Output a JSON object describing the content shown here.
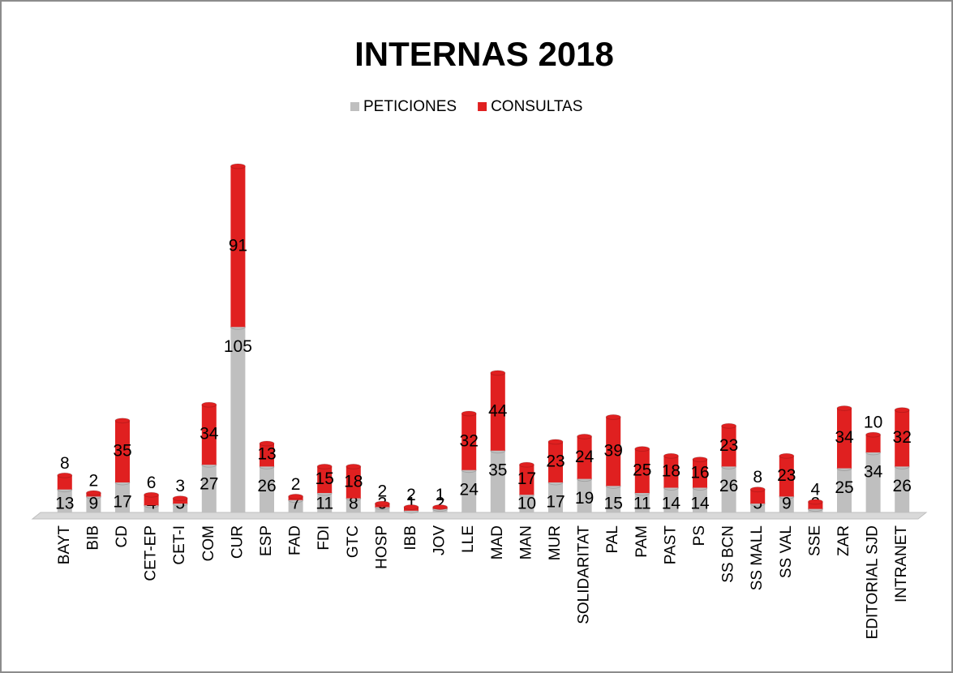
{
  "chart_data": {
    "type": "stacked_bar",
    "title": "INTERNAS 2018",
    "categories": [
      "BAYT",
      "BIB",
      "CD",
      "CET-EP",
      "CET-I",
      "COM",
      "CUR",
      "ESP",
      "FAD",
      "FDI",
      "GTC",
      "HOSP",
      "IBB",
      "JOV",
      "LLE",
      "MAD",
      "MAN",
      "MUR",
      "SOLIDARITAT",
      "PAL",
      "PAM",
      "PAST",
      "PS",
      "SS BCN",
      "SS MALL",
      "SS VAL",
      "SSE",
      "ZAR",
      "EDITORIAL SJD",
      "INTRANET"
    ],
    "series": [
      {
        "name": "PETICIONES",
        "color": "#bfbfbf",
        "values": [
          13,
          9,
          17,
          4,
          5,
          27,
          105,
          26,
          7,
          11,
          8,
          3,
          1,
          2,
          24,
          35,
          10,
          17,
          19,
          15,
          11,
          14,
          14,
          26,
          5,
          9,
          2,
          25,
          34,
          26
        ]
      },
      {
        "name": "CONSULTAS",
        "color": "#e02020",
        "values": [
          8,
          2,
          35,
          6,
          3,
          34,
          91,
          13,
          2,
          15,
          18,
          2,
          2,
          1,
          32,
          44,
          17,
          23,
          24,
          39,
          25,
          18,
          16,
          23,
          8,
          23,
          4,
          34,
          10,
          32
        ]
      }
    ],
    "legend": "top"
  }
}
